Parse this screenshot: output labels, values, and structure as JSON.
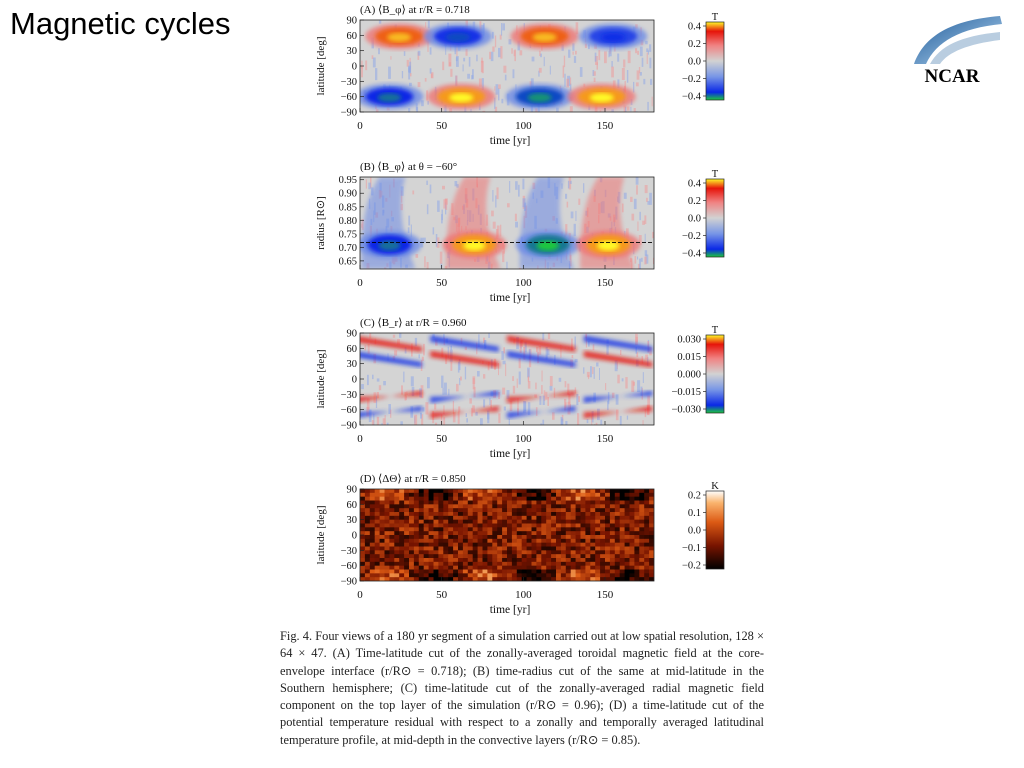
{
  "slide_title": "Magnetic cycles",
  "logo": {
    "text": "NCAR"
  },
  "chart_data": [
    {
      "type": "heatmap",
      "title": "(A) ⟨B_φ⟩ at r/R = 0.718",
      "xlabel": "time [yr]",
      "ylabel": "latitude [deg]",
      "xlim": [
        0,
        180
      ],
      "ylim": [
        -90,
        90
      ],
      "x_ticks": [
        0,
        50,
        100,
        150
      ],
      "y_ticks": [
        90,
        60,
        30,
        0,
        -30,
        -60,
        -90
      ],
      "colorbar": {
        "unit": "T",
        "ticks": [
          "0.4",
          "0.2",
          "0.0",
          "−0.2",
          "−0.4"
        ],
        "range": [
          -0.45,
          0.45
        ]
      },
      "features": [
        {
          "t": 24,
          "lat": 58,
          "value": 0.42
        },
        {
          "t": 60,
          "lat": 58,
          "value": -0.38
        },
        {
          "t": 113,
          "lat": 58,
          "value": 0.42
        },
        {
          "t": 155,
          "lat": 58,
          "value": -0.35
        },
        {
          "t": 18,
          "lat": -60,
          "value": -0.4
        },
        {
          "t": 62,
          "lat": -60,
          "value": 0.45
        },
        {
          "t": 110,
          "lat": -60,
          "value": -0.42
        },
        {
          "t": 148,
          "lat": -60,
          "value": 0.45
        }
      ]
    },
    {
      "type": "heatmap",
      "title": "(B) ⟨B_φ⟩ at θ = −60°",
      "xlabel": "time [yr]",
      "ylabel": "radius [R⊙]",
      "xlim": [
        0,
        180
      ],
      "ylim": [
        0.62,
        0.96
      ],
      "x_ticks": [
        0,
        50,
        100,
        150
      ],
      "y_ticks": [
        "0.95",
        "0.90",
        "0.85",
        "0.80",
        "0.75",
        "0.70",
        "0.65"
      ],
      "colorbar": {
        "unit": "T",
        "ticks": [
          "0.4",
          "0.2",
          "0.0",
          "−0.2",
          "−0.4"
        ],
        "range": [
          -0.45,
          0.45
        ]
      },
      "interface_radius": 0.718,
      "features": [
        {
          "t": 18,
          "r": 0.71,
          "value": -0.4
        },
        {
          "t": 70,
          "r": 0.71,
          "value": 0.45
        },
        {
          "t": 115,
          "r": 0.71,
          "value": -0.45
        },
        {
          "t": 152,
          "r": 0.71,
          "value": 0.45
        }
      ]
    },
    {
      "type": "heatmap",
      "title": "(C) ⟨B_r⟩ at r/R = 0.960",
      "xlabel": "time [yr]",
      "ylabel": "latitude [deg]",
      "xlim": [
        0,
        180
      ],
      "ylim": [
        -90,
        90
      ],
      "x_ticks": [
        0,
        50,
        100,
        150
      ],
      "y_ticks": [
        90,
        60,
        30,
        0,
        -30,
        -60,
        -90
      ],
      "colorbar": {
        "unit": "T",
        "ticks": [
          "0.030",
          "0.015",
          "0.000",
          "−0.015",
          "−0.030"
        ],
        "range": [
          -0.032,
          0.032
        ]
      }
    },
    {
      "type": "heatmap",
      "title": "(D) ⟨ΔΘ⟩ at r/R = 0.850",
      "xlabel": "time [yr]",
      "ylabel": "latitude [deg]",
      "xlim": [
        0,
        180
      ],
      "ylim": [
        -90,
        90
      ],
      "x_ticks": [
        0,
        50,
        100,
        150
      ],
      "y_ticks": [
        90,
        60,
        30,
        0,
        -30,
        -60,
        -90
      ],
      "colorbar": {
        "unit": "K",
        "ticks": [
          "0.2",
          "0.1",
          "0.0",
          "−0.1",
          "−0.2"
        ],
        "range": [
          -0.22,
          0.22
        ]
      }
    }
  ],
  "caption": "Fig. 4. Four views of a 180 yr segment of a simulation carried out at low spatial resolution, 128 × 64 × 47. (A) Time-latitude cut of the zonally-averaged toroidal magnetic field at the core-envelope interface (r/R⊙ = 0.718); (B) time-radius cut of the same at mid-latitude in the Southern hemisphere; (C) time-latitude cut of the zonally-averaged radial magnetic field component on the top layer of the simulation (r/R⊙ = 0.96); (D) a time-latitude cut of the potential temperature residual with respect to a zonally and temporally averaged latitudinal temperature profile, at mid-depth in the convective layers (r/R⊙ = 0.85)."
}
